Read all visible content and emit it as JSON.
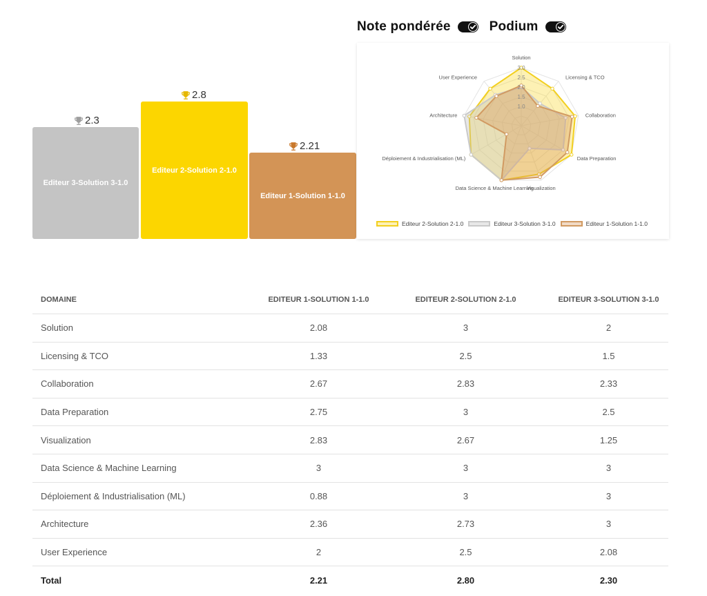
{
  "toggles": [
    {
      "label": "Note pondérée",
      "state": "on"
    },
    {
      "label": "Podium",
      "state": "on"
    }
  ],
  "podium": [
    {
      "label": "Editeur 3-Solution 3-1.0",
      "score": "2.3",
      "color": "#c4c4c4",
      "trophy_color": "#9e9e9e"
    },
    {
      "label": "Editeur 2-Solution 2-1.0",
      "score": "2.8",
      "color": "#fcd600",
      "trophy_color": "#e6b800"
    },
    {
      "label": "Editeur 1-Solution 1-1.0",
      "score": "2.21",
      "color": "#d39456",
      "trophy_color": "#c9782b"
    }
  ],
  "radar": {
    "axes": [
      "Solution",
      "Licensing & TCO",
      "Collaboration",
      "Data Preparation",
      "Visualization",
      "Data Science & Machine Learning",
      "Déploiement & Industrialisation (ML)",
      "Architecture",
      "User Experience"
    ],
    "ticks": [
      "1.0",
      "1.5",
      "2.0",
      "2.5",
      "3.0"
    ],
    "range": [
      0,
      3
    ],
    "series": [
      {
        "name": "Editeur 2-Solution 2-1.0",
        "color": "#f2cf1f",
        "fill": "rgba(250,214,40,0.35)",
        "values": [
          3,
          2.5,
          2.83,
          3,
          2.67,
          3,
          3,
          2.73,
          2.5
        ]
      },
      {
        "name": "Editeur 3-Solution 3-1.0",
        "color": "#c9c9c9",
        "fill": "rgba(190,190,190,0.35)",
        "values": [
          2,
          1.5,
          2.33,
          2.5,
          1.25,
          3,
          3,
          3,
          2.08
        ]
      },
      {
        "name": "Editeur 1-Solution 1-1.0",
        "color": "#d19a62",
        "fill": "rgba(214,150,90,0.35)",
        "values": [
          2.08,
          1.33,
          2.67,
          2.75,
          2.83,
          3,
          0.88,
          2.36,
          2
        ]
      }
    ]
  },
  "table": {
    "headers": [
      "DOMAINE",
      "EDITEUR 1-SOLUTION 1-1.0",
      "EDITEUR 2-SOLUTION 2-1.0",
      "EDITEUR 3-SOLUTION 3-1.0"
    ],
    "rows": [
      [
        "Solution",
        "2.08",
        "3",
        "2"
      ],
      [
        "Licensing & TCO",
        "1.33",
        "2.5",
        "1.5"
      ],
      [
        "Collaboration",
        "2.67",
        "2.83",
        "2.33"
      ],
      [
        "Data Preparation",
        "2.75",
        "3",
        "2.5"
      ],
      [
        "Visualization",
        "2.83",
        "2.67",
        "1.25"
      ],
      [
        "Data Science & Machine Learning",
        "3",
        "3",
        "3"
      ],
      [
        "Déploiement & Industrialisation (ML)",
        "0.88",
        "3",
        "3"
      ],
      [
        "Architecture",
        "2.36",
        "2.73",
        "3"
      ],
      [
        "User Experience",
        "2",
        "2.5",
        "2.08"
      ]
    ],
    "total": [
      "Total",
      "2.21",
      "2.80",
      "2.30"
    ]
  }
}
